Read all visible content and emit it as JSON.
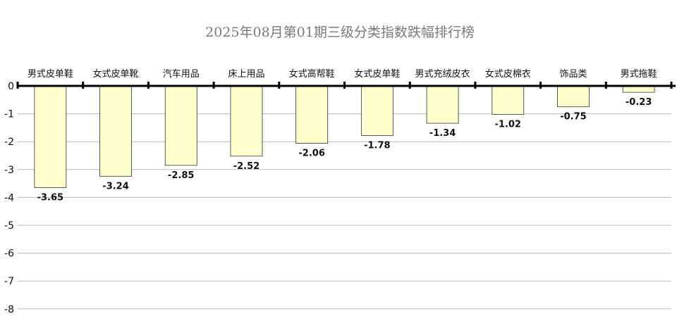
{
  "chart_data": {
    "type": "bar",
    "title": "2025年08月第01期三级分类指数跌幅排行榜",
    "categories": [
      "男式皮单鞋",
      "女式皮单靴",
      "汽车用品",
      "床上用品",
      "女式高帮鞋",
      "女式皮单鞋",
      "男式充绒皮衣",
      "女式皮棉衣",
      "饰品类",
      "男式拖鞋"
    ],
    "values": [
      -3.65,
      -3.24,
      -2.85,
      -2.52,
      -2.06,
      -1.78,
      -1.34,
      -1.02,
      -0.75,
      -0.23
    ],
    "value_labels": [
      "-3.65",
      "-3.24",
      "-2.85",
      "-2.52",
      "-2.06",
      "-1.78",
      "-1.34",
      "-1.02",
      "-0.75",
      "-0.23"
    ],
    "yticks": [
      0,
      -1,
      -2,
      -3,
      -4,
      -5,
      -6,
      -7,
      -8
    ],
    "ytick_labels": [
      "0",
      "-1",
      "-2",
      "-3",
      "-4",
      "-5",
      "-6",
      "-7",
      "-8"
    ],
    "ylim": [
      -8,
      0
    ],
    "xlabel": "",
    "ylabel": "",
    "grid": true,
    "colors": {
      "bar_fill": "#ffffcc",
      "bar_stroke": "#333333",
      "grid": "#b8b8b8",
      "axis": "#000000",
      "title": "#7a7a7a"
    }
  }
}
